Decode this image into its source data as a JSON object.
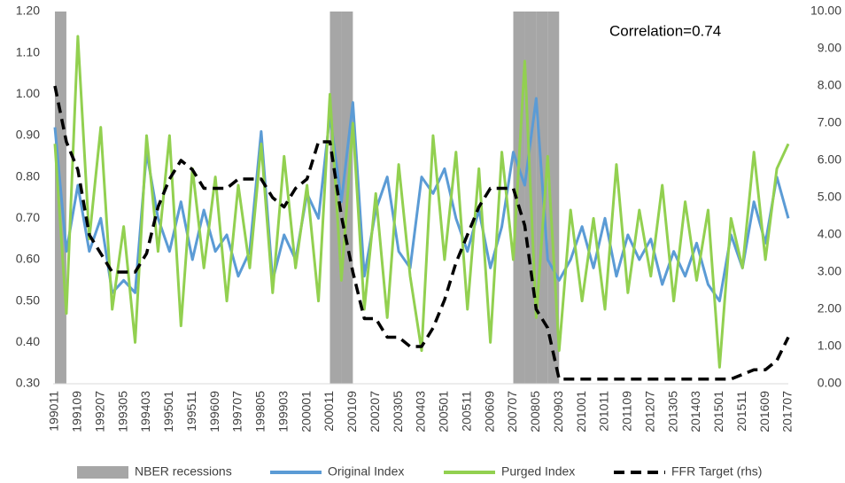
{
  "chart_data": {
    "type": "line",
    "annotation": "Correlation=0.74",
    "categories": [
      "199011",
      null,
      "199109",
      null,
      "199207",
      null,
      "199305",
      null,
      "199403",
      null,
      "199501",
      null,
      "199511",
      null,
      "199609",
      null,
      "199707",
      null,
      "199805",
      null,
      "199903",
      null,
      "200001",
      null,
      "200011",
      null,
      "200109",
      null,
      "200207",
      null,
      "200305",
      null,
      "200403",
      null,
      "200501",
      null,
      "200511",
      null,
      "200609",
      null,
      "200707",
      null,
      "200805",
      null,
      "200903",
      null,
      "201001",
      null,
      "201011",
      null,
      "201109",
      null,
      "201207",
      null,
      "201305",
      null,
      "201403",
      null,
      "201501",
      null,
      "201511",
      null,
      "201609",
      null,
      "201707"
    ],
    "series": [
      {
        "name": "NBER recessions",
        "type": "bar",
        "color": "#a6a6a6",
        "values": [
          1.2,
          null,
          null,
          null,
          null,
          null,
          null,
          null,
          null,
          null,
          null,
          null,
          null,
          null,
          null,
          null,
          null,
          null,
          null,
          null,
          null,
          null,
          null,
          null,
          1.2,
          1.2,
          null,
          null,
          null,
          null,
          null,
          null,
          null,
          null,
          null,
          null,
          null,
          null,
          null,
          null,
          1.2,
          1.2,
          1.2,
          1.2,
          null,
          null,
          null,
          null,
          null,
          null,
          null,
          null,
          null,
          null,
          null,
          null,
          null,
          null,
          null,
          null,
          null,
          null,
          null,
          null,
          null
        ]
      },
      {
        "name": "Original Index",
        "type": "line",
        "color": "#5b9bd5",
        "values": [
          0.92,
          0.62,
          0.78,
          0.62,
          0.7,
          0.52,
          0.55,
          0.52,
          0.86,
          0.7,
          0.62,
          0.74,
          0.6,
          0.72,
          0.62,
          0.66,
          0.56,
          0.62,
          0.91,
          0.55,
          0.66,
          0.6,
          0.76,
          0.7,
          0.95,
          0.74,
          0.98,
          0.56,
          0.72,
          0.8,
          0.62,
          0.58,
          0.8,
          0.76,
          0.82,
          0.7,
          0.62,
          0.72,
          0.58,
          0.68,
          0.86,
          0.78,
          0.99,
          0.6,
          0.55,
          0.6,
          0.68,
          0.58,
          0.7,
          0.56,
          0.66,
          0.6,
          0.65,
          0.54,
          0.62,
          0.56,
          0.64,
          0.54,
          0.5,
          0.66,
          0.58,
          0.74,
          0.64,
          0.8,
          0.7
        ]
      },
      {
        "name": "Purged Index",
        "type": "line",
        "color": "#92d050",
        "values": [
          0.88,
          0.47,
          1.14,
          0.65,
          0.92,
          0.48,
          0.68,
          0.4,
          0.9,
          0.62,
          0.9,
          0.44,
          0.82,
          0.58,
          0.8,
          0.5,
          0.78,
          0.58,
          0.88,
          0.52,
          0.85,
          0.58,
          0.78,
          0.5,
          1.0,
          0.55,
          0.93,
          0.48,
          0.76,
          0.46,
          0.83,
          0.56,
          0.38,
          0.9,
          0.6,
          0.86,
          0.48,
          0.82,
          0.4,
          0.86,
          0.6,
          1.08,
          0.46,
          0.85,
          0.38,
          0.72,
          0.5,
          0.7,
          0.48,
          0.83,
          0.52,
          0.72,
          0.56,
          0.78,
          0.5,
          0.74,
          0.55,
          0.72,
          0.34,
          0.7,
          0.58,
          0.86,
          0.6,
          0.82,
          0.88
        ]
      },
      {
        "name": "FFR Target (rhs)",
        "type": "line",
        "dashed": true,
        "axis": "y2",
        "color": "#000000",
        "values": [
          8,
          6.5,
          5.75,
          4,
          3.5,
          3,
          3,
          3,
          3.5,
          4.75,
          5.5,
          6,
          5.75,
          5.25,
          5.25,
          5.25,
          5.5,
          5.5,
          5.5,
          5,
          4.75,
          5.25,
          5.5,
          6.5,
          6.5,
          4.5,
          3,
          1.75,
          1.75,
          1.25,
          1.25,
          1,
          1,
          1.5,
          2.25,
          3.25,
          4,
          4.75,
          5.25,
          5.25,
          5.25,
          4.25,
          2,
          1.5,
          0.125,
          0.125,
          0.125,
          0.125,
          0.125,
          0.125,
          0.125,
          0.125,
          0.125,
          0.125,
          0.125,
          0.125,
          0.125,
          0.125,
          0.125,
          0.125,
          0.25,
          0.375,
          0.375,
          0.625,
          1.25
        ]
      }
    ],
    "ylim": [
      0.3,
      1.2
    ],
    "yticks": [
      {
        "value": 0.3,
        "label": "0.30"
      },
      {
        "value": 0.4,
        "label": "0.40"
      },
      {
        "value": 0.5,
        "label": "0.50"
      },
      {
        "value": 0.6,
        "label": "0.60"
      },
      {
        "value": 0.7,
        "label": "0.70"
      },
      {
        "value": 0.8,
        "label": "0.80"
      },
      {
        "value": 0.9,
        "label": "0.90"
      },
      {
        "value": 1.0,
        "label": "1.00"
      },
      {
        "value": 1.1,
        "label": "1.10"
      },
      {
        "value": 1.2,
        "label": "1.20"
      }
    ],
    "y2lim": [
      0,
      10
    ],
    "y2ticks": [
      {
        "value": 0,
        "label": "0.00"
      },
      {
        "value": 1,
        "label": "1.00"
      },
      {
        "value": 2,
        "label": "2.00"
      },
      {
        "value": 3,
        "label": "3.00"
      },
      {
        "value": 4,
        "label": "4.00"
      },
      {
        "value": 5,
        "label": "5.00"
      },
      {
        "value": 6,
        "label": "6.00"
      },
      {
        "value": 7,
        "label": "7.00"
      },
      {
        "value": 8,
        "label": "8.00"
      },
      {
        "value": 9,
        "label": "9.00"
      },
      {
        "value": 10,
        "label": "10.00"
      }
    ],
    "legend": "bottom",
    "grid": false
  }
}
